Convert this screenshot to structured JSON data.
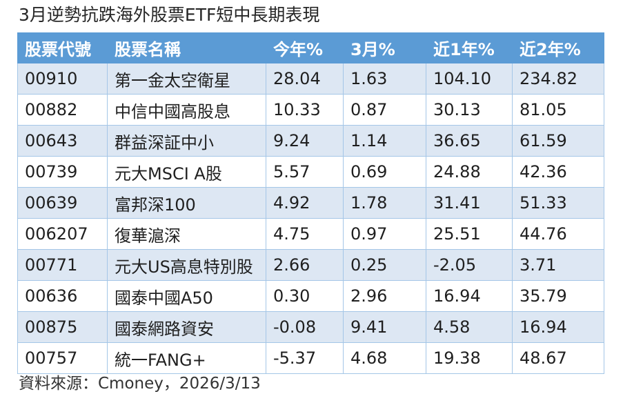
{
  "chart_data": {
    "type": "table",
    "title": "3月逆勢抗跌海外股票ETF短中長期表現",
    "columns": [
      "股票代號",
      "股票名稱",
      "今年%",
      "3月%",
      "近1年%",
      "近2年%"
    ],
    "rows": [
      {
        "code": "00910",
        "name": "第一金太空衛星",
        "ytd": "28.04",
        "m3": "1.63",
        "y1": "104.10",
        "y2": "234.82"
      },
      {
        "code": "00882",
        "name": "中信中國高股息",
        "ytd": "10.33",
        "m3": "0.87",
        "y1": "30.13",
        "y2": "81.05"
      },
      {
        "code": "00643",
        "name": "群益深証中小",
        "ytd": "9.24",
        "m3": "1.14",
        "y1": "36.65",
        "y2": "61.59"
      },
      {
        "code": "00739",
        "name": "元大MSCI A股",
        "ytd": "5.57",
        "m3": "0.69",
        "y1": "24.88",
        "y2": "42.36"
      },
      {
        "code": "00639",
        "name": "富邦深100",
        "ytd": "4.92",
        "m3": "1.78",
        "y1": "31.41",
        "y2": "51.33"
      },
      {
        "code": "006207",
        "name": "復華滬深",
        "ytd": "4.75",
        "m3": "0.97",
        "y1": "25.51",
        "y2": "44.76"
      },
      {
        "code": "00771",
        "name": "元大US高息特別股",
        "ytd": "2.66",
        "m3": "0.25",
        "y1": "-2.05",
        "y2": "3.71"
      },
      {
        "code": "00636",
        "name": "國泰中國A50",
        "ytd": "0.30",
        "m3": "2.96",
        "y1": "16.94",
        "y2": "35.79"
      },
      {
        "code": "00875",
        "name": "國泰網路資安",
        "ytd": "-0.08",
        "m3": "9.41",
        "y1": "4.58",
        "y2": "16.94"
      },
      {
        "code": "00757",
        "name": "統一FANG+",
        "ytd": "-5.37",
        "m3": "4.68",
        "y1": "19.38",
        "y2": "48.67"
      }
    ],
    "source": "資料來源：Cmoney，2026/3/13",
    "layout": {
      "banded_rows": true,
      "band_on_odd_rows": true,
      "grid": true,
      "header_position": "top"
    }
  },
  "colors": {
    "header_bg": "#5B9BD5",
    "header_text": "#FFFFFF",
    "band_bg": "#DDE7F3",
    "border": "#A4C6E7",
    "body_text": "#1F1F1F"
  }
}
